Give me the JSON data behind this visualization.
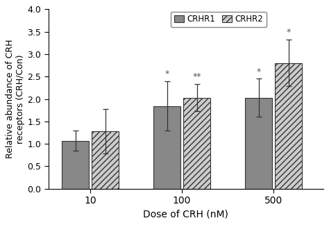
{
  "categories": [
    "10",
    "100",
    "500"
  ],
  "crhr1_values": [
    1.07,
    1.84,
    2.03
  ],
  "crhr2_values": [
    1.28,
    2.03,
    2.8
  ],
  "crhr1_errors": [
    0.22,
    0.55,
    0.42
  ],
  "crhr2_errors": [
    0.5,
    0.3,
    0.52
  ],
  "crhr1_color": "#888888",
  "crhr2_hatch": "////",
  "crhr2_facecolor": "#cccccc",
  "xlabel": "Dose of CRH (nM)",
  "ylabel": "Relative abundance of CRH\nreceptors (CRH/Con)",
  "ylim": [
    0.0,
    4.0
  ],
  "yticks": [
    0.0,
    0.5,
    1.0,
    1.5,
    2.0,
    2.5,
    3.0,
    3.5,
    4.0
  ],
  "bar_width": 0.35,
  "group_positions": [
    1.0,
    2.2,
    3.4
  ],
  "sig_labels_crhr1": [
    "",
    "*",
    "*"
  ],
  "sig_labels_crhr2": [
    "",
    "**",
    "*"
  ],
  "legend_labels": [
    "CRHR1",
    "CRHR2"
  ],
  "edgecolor": "#333333",
  "errorbar_color": "#333333",
  "capsize": 3
}
